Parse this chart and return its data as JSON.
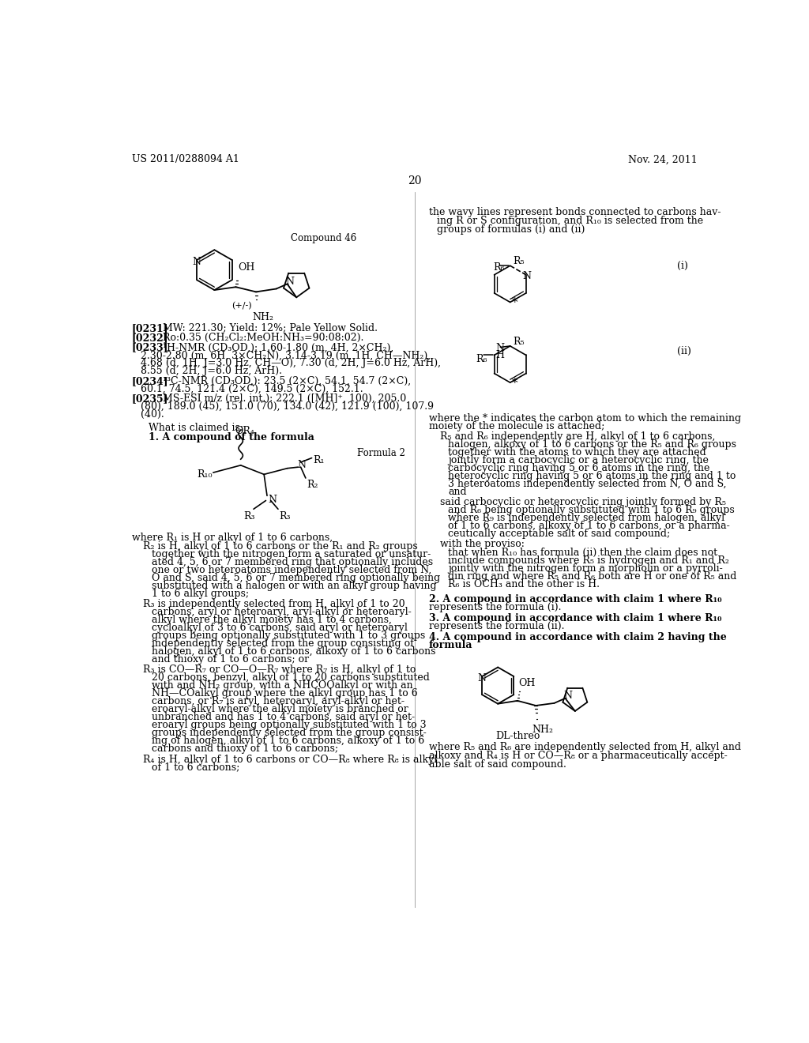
{
  "background_color": "#ffffff",
  "header_left": "US 2011/0288094 A1",
  "header_right": "Nov. 24, 2011",
  "page_number": "20",
  "compound46_label": "Compound 46",
  "compound46_stereo": "(+/-)",
  "formula2_label": "Formula 2",
  "dl_threo_label": "DL-threo",
  "left_r2_lines": [
    "R₂ is H, alkyl of 1 to 6 carbons or the R₁ and R₂ groups",
    "together with the nitrogen form a saturated or unsatur-",
    "ated 4, 5, 6 or 7 membered ring that optionally includes",
    "one or two heteroatoms independently selected from N,",
    "O and S, said 4, 5, 6 or 7 membered ring optionally being",
    "substituted with a halogen or with an alkyl group having",
    "1 to 6 alkyl groups;"
  ],
  "left_r3_lines": [
    "R₃ is independently selected from H, alkyl of 1 to 20",
    "carbons, aryl or heteroaryl, aryl-alkyl or heteroaryl-",
    "alkyl where the alkyl moiety has 1 to 4 carbons,",
    "cycloalkyl of 3 to 6 carbons, said aryl or heteroaryl",
    "groups being optionally substituted with 1 to 3 groups",
    "independently selected from the group consisting of",
    "halogen, alkyl of 1 to 6 carbons, alkoxy of 1 to 6 carbons",
    "and thioxy of 1 to 6 carbons; or"
  ],
  "left_r3b_lines": [
    "R₃ is CO—R₇ or CO—O—R₇ where R₇ is H, alkyl of 1 to",
    "20 carbons, benzyl, alkyl of 1 to 20 carbons substituted",
    "with and NH₂ group, with a NHCOOalkyl or with an",
    "NH—COalkyl group where the alkyl group has 1 to 6",
    "carbons, or R₇ is aryl, heteroaryl, aryl-alkyl or het-",
    "eroaryl-alkyl where the alkyl moiety is branched or",
    "unbranched and has 1 to 4 carbons, said aryl or het-",
    "eroaryl groups being optionally substituted with 1 to 3",
    "groups independently selected from the group consist-",
    "ing of halogen, alkyl of 1 to 6 carbons, alkoxy of 1 to 6",
    "carbons and thioxy of 1 to 6 carbons;"
  ],
  "left_r4_lines": [
    "R₄ is H, alkyl of 1 to 6 carbons or CO—R₈ where R₈ is alkyl",
    "of 1 to 6 carbons;"
  ],
  "r5r6_lines": [
    "R₅ and R₆ independently are H, alkyl of 1 to 6 carbons,",
    "halogen, alkoxy of 1 to 6 carbons or the R₅ and R₆ groups",
    "together with the atoms to which they are attached",
    "jointly form a carbocyclic or a heterocyclic ring, the",
    "carbocyclic ring having 5 or 6 atoms in the ring, the",
    "heterocyclic ring having 5 or 6 atoms in the ring and 1 to",
    "3 heteroatoms independently selected from N, O and S,",
    "and"
  ],
  "said_lines": [
    "said carbocyclic or heterocyclic ring jointly formed by R₅",
    "and R₆ being optionally substituted with 1 to 6 R₉ groups",
    "where R₉ is independently selected from halogen, alkyl",
    "of 1 to 6 carbons, alkoxy of 1 to 6 carbons, or a pharma-",
    "ceutically acceptable salt of said compound;"
  ],
  "proviso_lines": [
    "that when R₁₀ has formula (ii) then the claim does not",
    "include compounds where R₅ is hydrogen and R₁ and R₂",
    "jointly with the nitrogen form a morpholin or a pyrroli-",
    "din ring and where R₅ and R₆ both are H or one of R₅ and",
    "R₆ is OCH₃ and the other is H."
  ],
  "where_final_lines": [
    "where R₅ and R₆ are independently selected from H, alkyl and",
    "alkoxy and R₄ is H or CO—R₈ or a pharmaceutically accept-",
    "able salt of said compound."
  ]
}
